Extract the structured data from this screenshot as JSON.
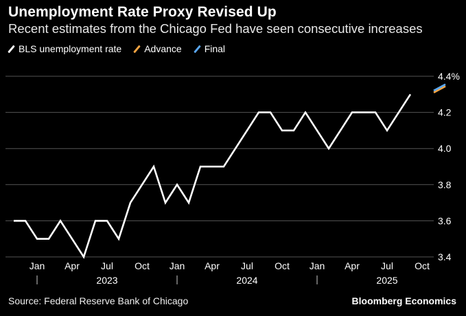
{
  "header": {
    "title": "Unemployment Rate Proxy Revised Up",
    "subtitle": "Recent estimates from the Chicago Fed have seen consecutive increases"
  },
  "footer": {
    "source": "Source: Federal Reserve Bank of Chicago",
    "brand": "Bloomberg Economics"
  },
  "colors": {
    "background": "#000000",
    "bls": "#ffffff",
    "advance": "#f5a442",
    "final": "#5aa7f0",
    "grid": "#555555"
  },
  "chart_data": {
    "type": "line",
    "title": "Unemployment Rate Proxy Revised Up",
    "subtitle": "Recent estimates from the Chicago Fed have seen consecutive increases",
    "ylabel": "%",
    "ylim": [
      3.35,
      4.4
    ],
    "y_ticks": [
      {
        "value": 3.4,
        "label": "3.4"
      },
      {
        "value": 3.6,
        "label": "3.6"
      },
      {
        "value": 3.8,
        "label": "3.8"
      },
      {
        "value": 4.0,
        "label": "4.0"
      },
      {
        "value": 4.2,
        "label": "4.2"
      },
      {
        "value": 4.4,
        "label": "4.4%"
      }
    ],
    "x_ticks": [
      {
        "index": 2,
        "label": "Jan"
      },
      {
        "index": 5,
        "label": "Apr"
      },
      {
        "index": 8,
        "label": "Jul"
      },
      {
        "index": 11,
        "label": "Oct"
      },
      {
        "index": 14,
        "label": "Jan"
      },
      {
        "index": 17,
        "label": "Apr"
      },
      {
        "index": 20,
        "label": "Jul"
      },
      {
        "index": 23,
        "label": "Oct"
      },
      {
        "index": 26,
        "label": "Jan"
      },
      {
        "index": 29,
        "label": "Apr"
      },
      {
        "index": 32,
        "label": "Jul"
      },
      {
        "index": 35,
        "label": "Oct"
      }
    ],
    "years": [
      {
        "center": 8,
        "label": "2023"
      },
      {
        "center": 20,
        "label": "2024"
      },
      {
        "center": 32,
        "label": "2025"
      }
    ],
    "year_separators": [
      2,
      14,
      26
    ],
    "x_range": [
      0,
      37
    ],
    "legend": [
      {
        "name": "BLS unemployment rate",
        "color": "#ffffff"
      },
      {
        "name": "Advance",
        "color": "#f5a442"
      },
      {
        "name": "Final",
        "color": "#5aa7f0"
      }
    ],
    "series": [
      {
        "name": "BLS unemployment rate",
        "color": "#ffffff",
        "x": [
          0,
          1,
          2,
          3,
          4,
          5,
          6,
          7,
          8,
          9,
          10,
          11,
          12,
          13,
          14,
          15,
          16,
          17,
          18,
          19,
          20,
          21,
          22,
          23,
          24,
          25,
          26,
          27,
          28,
          29,
          30,
          31,
          32,
          33,
          34
        ],
        "values": [
          3.6,
          3.6,
          3.5,
          3.5,
          3.6,
          3.5,
          3.4,
          3.6,
          3.6,
          3.5,
          3.7,
          3.8,
          3.9,
          3.7,
          3.8,
          3.7,
          3.9,
          3.9,
          3.9,
          4.0,
          4.1,
          4.2,
          4.2,
          4.1,
          4.1,
          4.2,
          4.1,
          4.0,
          4.1,
          4.2,
          4.2,
          4.2,
          4.1,
          4.2,
          4.3
        ]
      },
      {
        "name": "Advance",
        "color": "#f5a442",
        "x": [
          36,
          37
        ],
        "values": [
          4.31,
          4.345
        ]
      },
      {
        "name": "Final",
        "color": "#5aa7f0",
        "x": [
          36,
          37
        ],
        "values": [
          4.32,
          4.355
        ]
      }
    ]
  }
}
